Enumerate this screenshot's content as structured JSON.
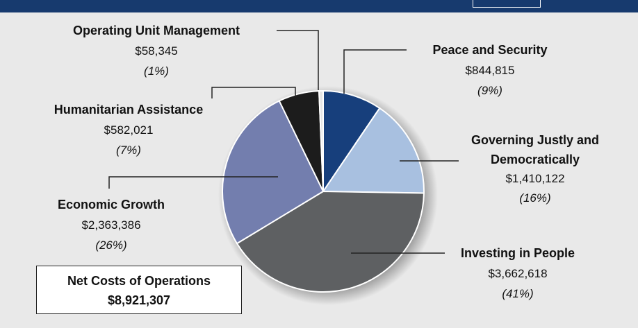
{
  "chart_data": {
    "type": "pie",
    "categories": [
      "Peace and Security",
      "Governing Justly and Democratically",
      "Investing in People",
      "Economic Growth",
      "Humanitarian Assistance",
      "Operating Unit Management"
    ],
    "values": [
      844815,
      1410122,
      3662618,
      2363386,
      582021,
      58345
    ],
    "value_labels": [
      "$844,815",
      "$1,410,122",
      "$3,662,618",
      "$2,363,386",
      "$582,021",
      "$58,345"
    ],
    "percent_labels": [
      "(9%)",
      "(16%)",
      "(41%)",
      "(26%)",
      "(7%)",
      "(1%)"
    ],
    "colors": [
      "#173f7c",
      "#a8c0e0",
      "#5e6062",
      "#737eae",
      "#1c1c1c",
      "#e4e4e4"
    ],
    "total_label": "Net Costs of Operations",
    "total_value_label": "$8,921,307"
  }
}
